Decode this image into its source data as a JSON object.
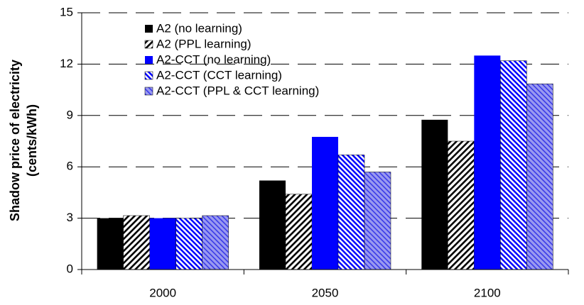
{
  "chart_data": {
    "type": "bar",
    "ylabel": [
      "Shadow price of electricity",
      "(cents/kWh)"
    ],
    "categories": [
      "2000",
      "2050",
      "2100"
    ],
    "series": [
      {
        "name": "A2 (no learning)",
        "color": "#000000",
        "hatch": "none",
        "values": [
          3.0,
          5.2,
          8.75
        ]
      },
      {
        "name": "A2 (PPL learning)",
        "color": "#000000",
        "hatch": "forward",
        "values": [
          3.15,
          4.4,
          7.5
        ]
      },
      {
        "name": "A2-CCT (no learning)",
        "color": "#0000ff",
        "hatch": "none",
        "values": [
          3.0,
          7.75,
          12.5
        ]
      },
      {
        "name": "A2-CCT (CCT learning)",
        "color": "#0000ff",
        "hatch": "backward",
        "values": [
          3.0,
          6.7,
          12.2
        ]
      },
      {
        "name": "A2-CCT (PPL & CCT learning)",
        "color": "#0000ff",
        "hatch": "lavender",
        "values": [
          3.15,
          5.7,
          10.85
        ]
      }
    ],
    "ylim": [
      0,
      15
    ],
    "yticks": [
      0,
      3,
      6,
      9,
      12,
      15
    ],
    "grid": "dashed",
    "legend": "top-left"
  }
}
